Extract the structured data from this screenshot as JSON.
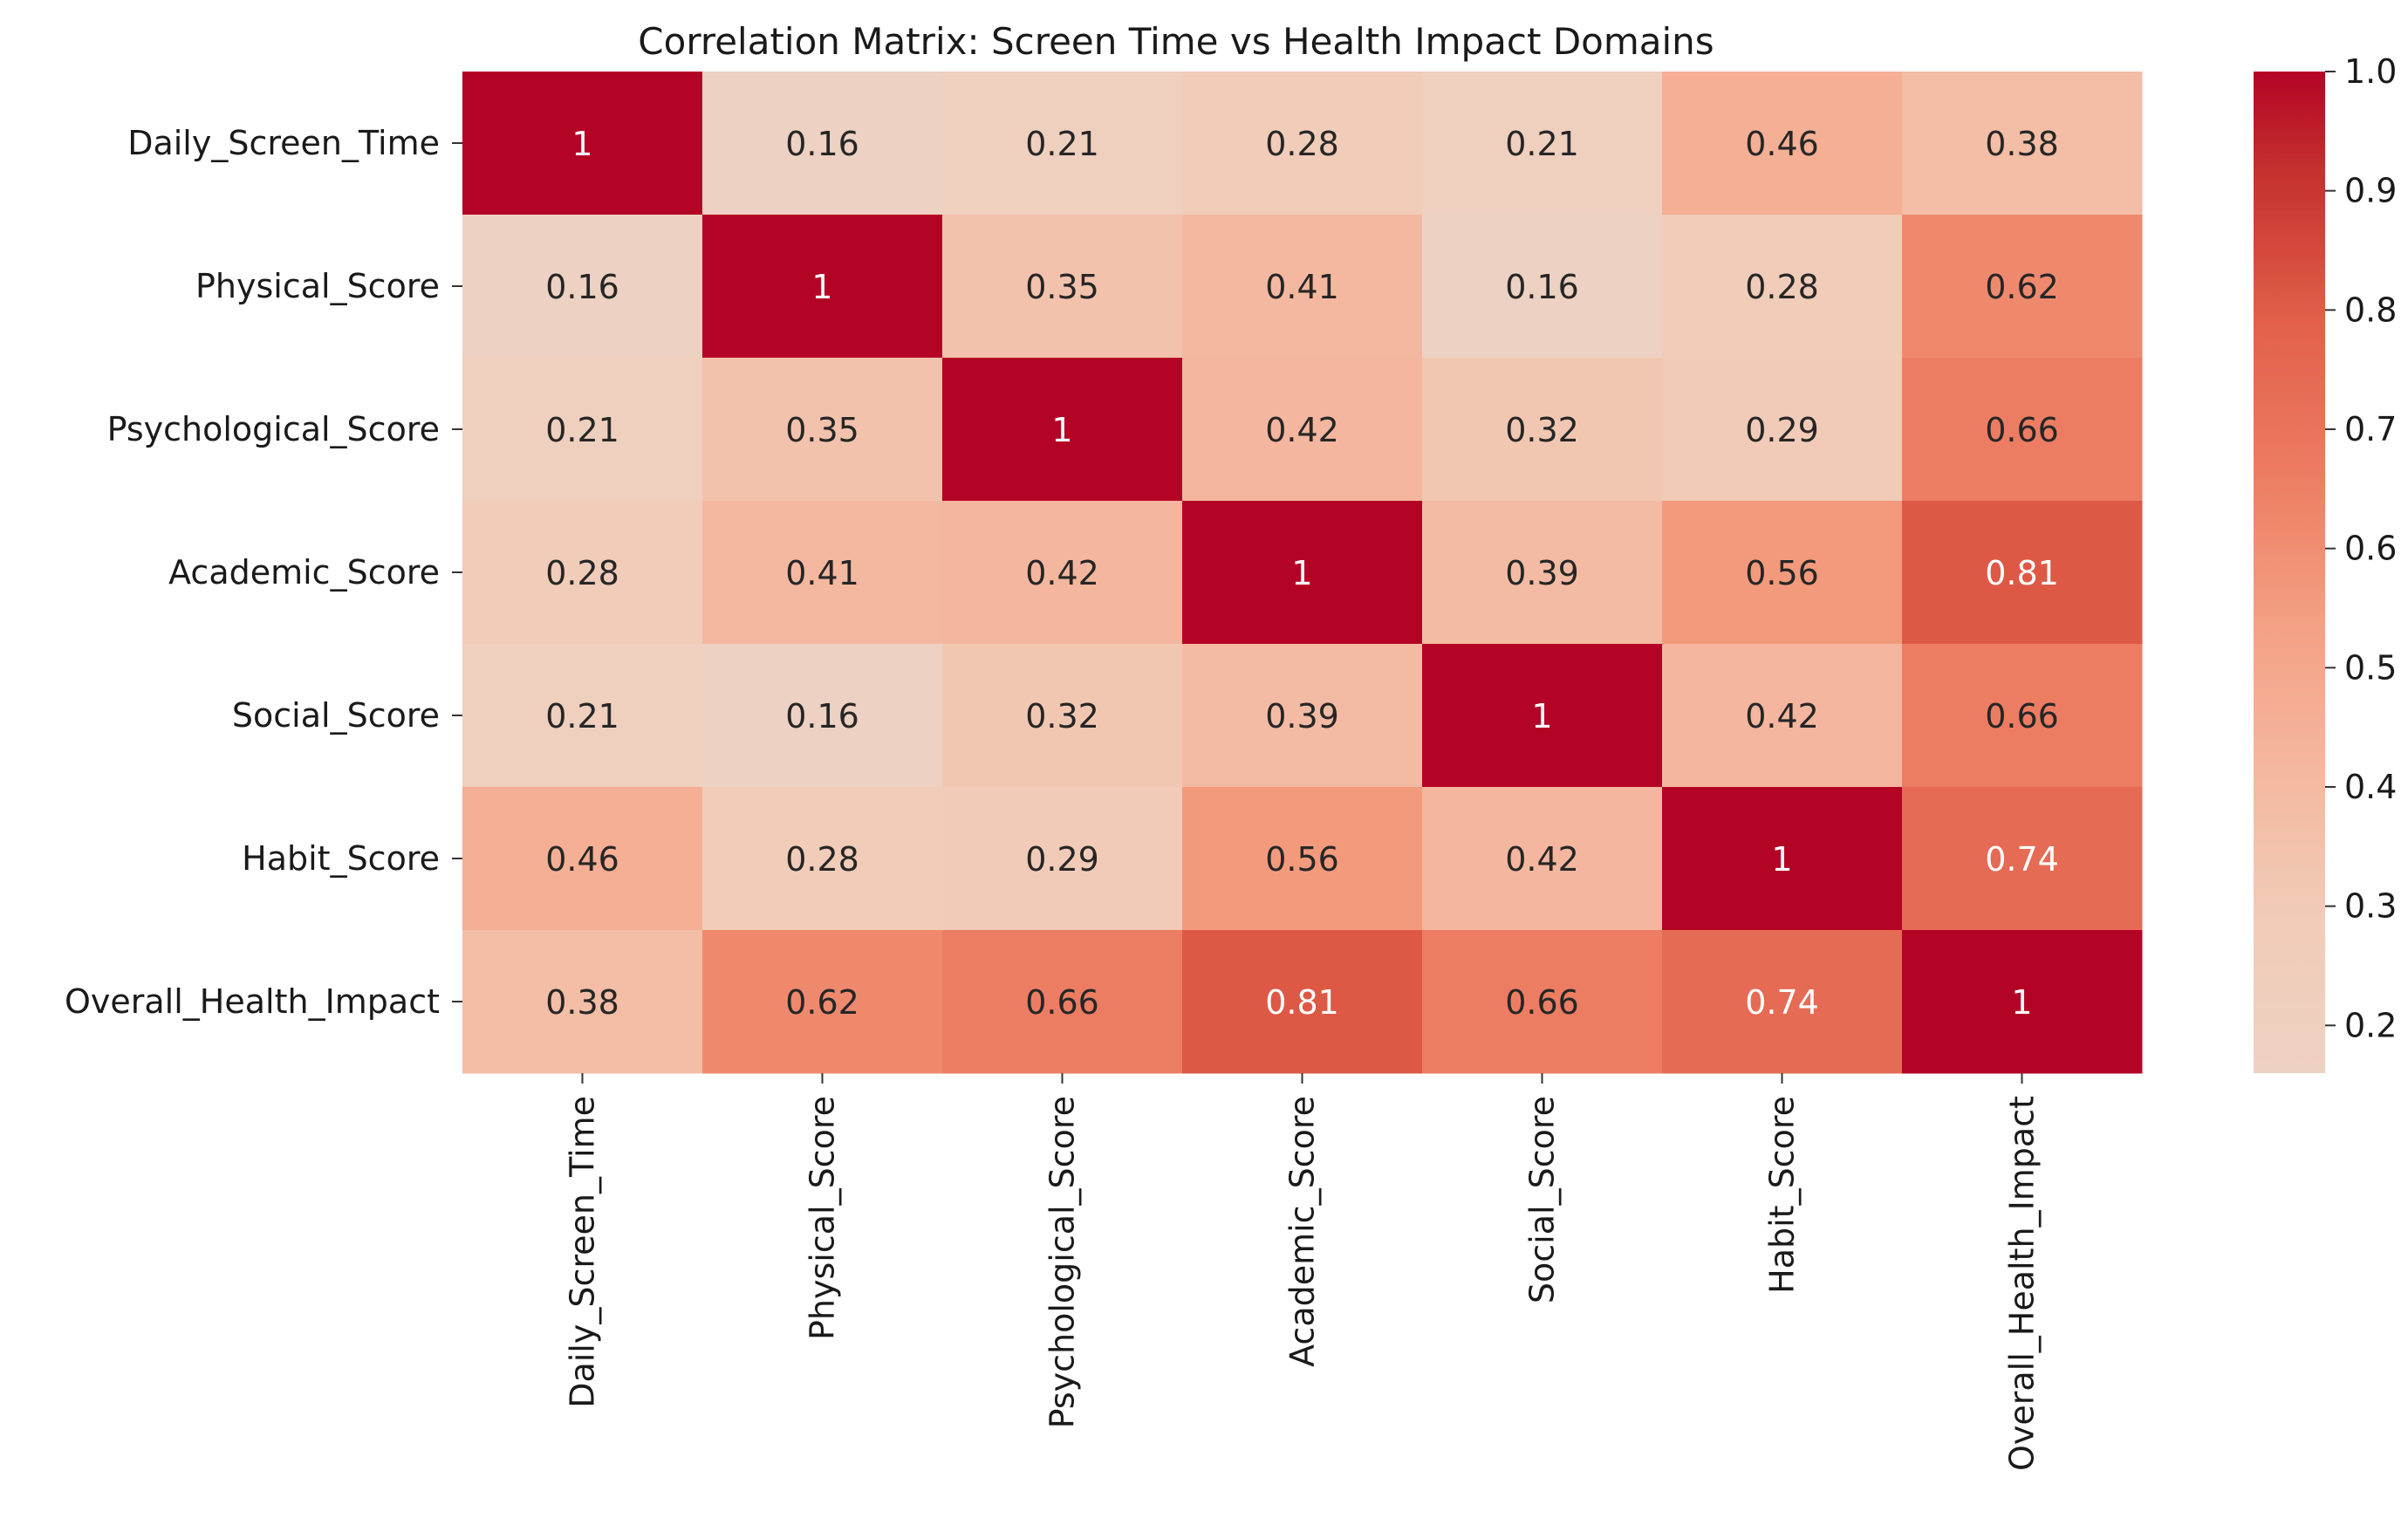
{
  "chart_data": {
    "type": "heatmap",
    "title": "Correlation Matrix: Screen Time vs Health Impact Domains",
    "xlabel": "",
    "ylabel": "",
    "rows": [
      "Daily_Screen_Time",
      "Physical_Score",
      "Psychological_Score",
      "Academic_Score",
      "Social_Score",
      "Habit_Score",
      "Overall_Health_Impact"
    ],
    "columns": [
      "Daily_Screen_Time",
      "Physical_Score",
      "Psychological_Score",
      "Academic_Score",
      "Social_Score",
      "Habit_Score",
      "Overall_Health_Impact"
    ],
    "values": [
      [
        1,
        0.16,
        0.21,
        0.28,
        0.21,
        0.46,
        0.38
      ],
      [
        0.16,
        1,
        0.35,
        0.41,
        0.16,
        0.28,
        0.62
      ],
      [
        0.21,
        0.35,
        1,
        0.42,
        0.32,
        0.29,
        0.66
      ],
      [
        0.28,
        0.41,
        0.42,
        1,
        0.39,
        0.56,
        0.81
      ],
      [
        0.21,
        0.16,
        0.32,
        0.39,
        1,
        0.42,
        0.66
      ],
      [
        0.46,
        0.28,
        0.29,
        0.56,
        0.42,
        1,
        0.74
      ],
      [
        0.38,
        0.62,
        0.66,
        0.81,
        0.66,
        0.74,
        1
      ]
    ],
    "colorbar": {
      "min": 0.16,
      "max": 1.0,
      "ticks": [
        0.2,
        0.3,
        0.4,
        0.5,
        0.6,
        0.7,
        0.8,
        0.9,
        1.0
      ],
      "tick_labels": [
        "0.2",
        "0.3",
        "0.4",
        "0.5",
        "0.6",
        "0.7",
        "0.8",
        "0.9",
        "1.0"
      ],
      "colormap": "coolwarm (upper half)",
      "color_low": "#edd1c2",
      "color_high": "#b40426"
    },
    "grid": false,
    "legend": "colorbar-right",
    "annotations": "cell values"
  }
}
